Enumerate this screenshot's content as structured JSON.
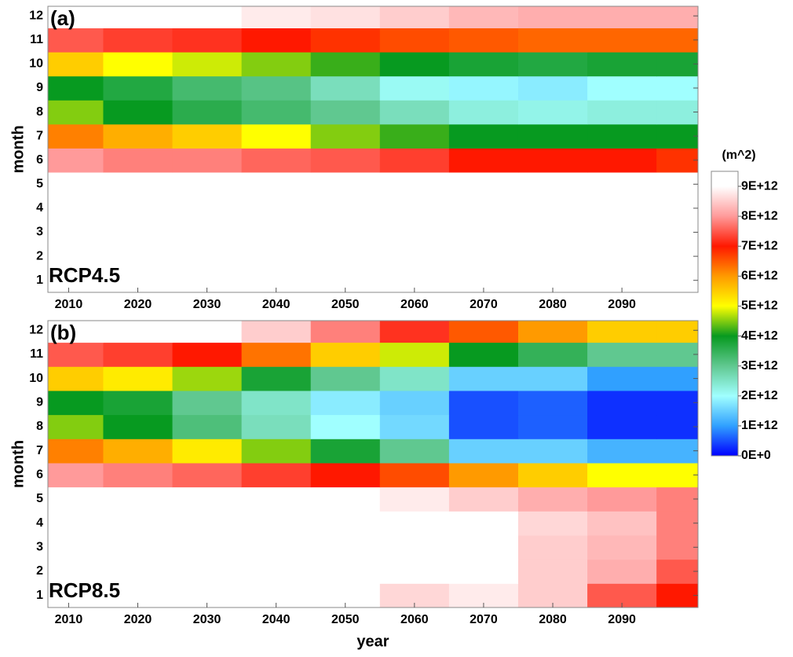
{
  "chart_data": [
    {
      "type": "heatmap",
      "label": "(a)",
      "scenario": "RCP4.5",
      "xlabel": "year",
      "ylabel": "month",
      "x": [
        2010,
        2020,
        2030,
        2040,
        2050,
        2060,
        2070,
        2080,
        2090,
        2100
      ],
      "y": [
        1,
        2,
        3,
        4,
        5,
        6,
        7,
        8,
        9,
        10,
        11,
        12
      ],
      "xlim": [
        2007,
        2101
      ],
      "ylim": [
        0.5,
        12.4
      ],
      "xticks": [
        2010,
        2020,
        2030,
        2040,
        2050,
        2060,
        2070,
        2080,
        2090
      ],
      "yticks": [
        1,
        2,
        3,
        4,
        5,
        6,
        7,
        8,
        9,
        10,
        11,
        12
      ],
      "z": [
        [
          9500000000000.0,
          9500000000000.0,
          9500000000000.0,
          9500000000000.0,
          9500000000000.0,
          9500000000000.0,
          9500000000000.0,
          9500000000000.0,
          9500000000000.0,
          9500000000000.0
        ],
        [
          9500000000000.0,
          9500000000000.0,
          9500000000000.0,
          9500000000000.0,
          9500000000000.0,
          9500000000000.0,
          9500000000000.0,
          9500000000000.0,
          9500000000000.0,
          9500000000000.0
        ],
        [
          9500000000000.0,
          9500000000000.0,
          9500000000000.0,
          9500000000000.0,
          9500000000000.0,
          9500000000000.0,
          9500000000000.0,
          9500000000000.0,
          9500000000000.0,
          9500000000000.0
        ],
        [
          9500000000000.0,
          9500000000000.0,
          9500000000000.0,
          9500000000000.0,
          9500000000000.0,
          9500000000000.0,
          9500000000000.0,
          9500000000000.0,
          9500000000000.0,
          9500000000000.0
        ],
        [
          9500000000000.0,
          9500000000000.0,
          9500000000000.0,
          9500000000000.0,
          9200000000000.0,
          9200000000000.0,
          9300000000000.0,
          9300000000000.0,
          9300000000000.0,
          9300000000000.0
        ],
        [
          8000000000000.0,
          7800000000000.0,
          7800000000000.0,
          7600000000000.0,
          7500000000000.0,
          7300000000000.0,
          7000000000000.0,
          7000000000000.0,
          7000000000000.0,
          6800000000000.0
        ],
        [
          6200000000000.0,
          5800000000000.0,
          5500000000000.0,
          5000000000000.0,
          4500000000000.0,
          4200000000000.0,
          4000000000000.0,
          4000000000000.0,
          4000000000000.0,
          4000000000000.0
        ],
        [
          4500000000000.0,
          4000000000000.0,
          3600000000000.0,
          3300000000000.0,
          3000000000000.0,
          2600000000000.0,
          2300000000000.0,
          2200000000000.0,
          2300000000000.0,
          2300000000000.0
        ],
        [
          4000000000000.0,
          3700000000000.0,
          3300000000000.0,
          3100000000000.0,
          2600000000000.0,
          2100000000000.0,
          1900000000000.0,
          1800000000000.0,
          2000000000000.0,
          2000000000000.0
        ],
        [
          5500000000000.0,
          5000000000000.0,
          4800000000000.0,
          4500000000000.0,
          4200000000000.0,
          4000000000000.0,
          3800000000000.0,
          3700000000000.0,
          3800000000000.0,
          3800000000000.0
        ],
        [
          7500000000000.0,
          7300000000000.0,
          7200000000000.0,
          7000000000000.0,
          6800000000000.0,
          6600000000000.0,
          6500000000000.0,
          6400000000000.0,
          6400000000000.0,
          6400000000000.0
        ],
        [
          9200000000000.0,
          9000000000000.0,
          9000000000000.0,
          8800000000000.0,
          8700000000000.0,
          8500000000000.0,
          8300000000000.0,
          8200000000000.0,
          8200000000000.0,
          8200000000000.0
        ]
      ]
    },
    {
      "type": "heatmap",
      "label": "(b)",
      "scenario": "RCP8.5",
      "xlabel": "year",
      "ylabel": "month",
      "x": [
        2010,
        2020,
        2030,
        2040,
        2050,
        2060,
        2070,
        2080,
        2090,
        2100
      ],
      "y": [
        1,
        2,
        3,
        4,
        5,
        6,
        7,
        8,
        9,
        10,
        11,
        12
      ],
      "xlim": [
        2007,
        2101
      ],
      "ylim": [
        0.5,
        12.4
      ],
      "xticks": [
        2010,
        2020,
        2030,
        2040,
        2050,
        2060,
        2070,
        2080,
        2090
      ],
      "yticks": [
        1,
        2,
        3,
        4,
        5,
        6,
        7,
        8,
        9,
        10,
        11,
        12
      ],
      "z": [
        [
          9500000000000.0,
          9500000000000.0,
          9500000000000.0,
          9500000000000.0,
          9200000000000.0,
          8600000000000.0,
          8800000000000.0,
          8500000000000.0,
          7500000000000.0,
          7000000000000.0
        ],
        [
          9500000000000.0,
          9500000000000.0,
          9500000000000.0,
          9500000000000.0,
          9300000000000.0,
          9000000000000.0,
          9000000000000.0,
          8500000000000.0,
          8200000000000.0,
          7500000000000.0
        ],
        [
          9500000000000.0,
          9500000000000.0,
          9500000000000.0,
          9500000000000.0,
          9400000000000.0,
          9300000000000.0,
          9300000000000.0,
          8500000000000.0,
          8300000000000.0,
          7800000000000.0
        ],
        [
          9500000000000.0,
          9500000000000.0,
          9500000000000.0,
          9500000000000.0,
          9400000000000.0,
          9300000000000.0,
          9300000000000.0,
          8600000000000.0,
          8400000000000.0,
          7800000000000.0
        ],
        [
          9500000000000.0,
          9500000000000.0,
          9500000000000.0,
          9400000000000.0,
          9000000000000.0,
          8800000000000.0,
          8500000000000.0,
          8200000000000.0,
          8000000000000.0,
          7800000000000.0
        ],
        [
          8000000000000.0,
          7800000000000.0,
          7600000000000.0,
          7300000000000.0,
          7000000000000.0,
          6600000000000.0,
          6000000000000.0,
          5500000000000.0,
          5000000000000.0,
          5000000000000.0
        ],
        [
          6200000000000.0,
          5800000000000.0,
          5200000000000.0,
          4500000000000.0,
          3800000000000.0,
          3000000000000.0,
          1500000000000.0,
          1500000000000.0,
          1200000000000.0,
          1200000000000.0
        ],
        [
          4500000000000.0,
          4000000000000.0,
          3200000000000.0,
          2600000000000.0,
          2000000000000.0,
          1600000000000.0,
          500000000000.0,
          600000000000.0,
          300000000000.0,
          300000000000.0
        ],
        [
          4000000000000.0,
          3800000000000.0,
          3000000000000.0,
          2500000000000.0,
          1800000000000.0,
          1500000000000.0,
          500000000000.0,
          600000000000.0,
          300000000000.0,
          300000000000.0
        ],
        [
          5500000000000.0,
          5200000000000.0,
          4600000000000.0,
          3800000000000.0,
          3000000000000.0,
          2500000000000.0,
          1500000000000.0,
          1500000000000.0,
          1000000000000.0,
          1000000000000.0
        ],
        [
          7500000000000.0,
          7300000000000.0,
          7000000000000.0,
          6300000000000.0,
          5500000000000.0,
          4800000000000.0,
          4000000000000.0,
          3500000000000.0,
          3000000000000.0,
          3000000000000.0
        ],
        [
          9200000000000.0,
          9200000000000.0,
          9000000000000.0,
          8500000000000.0,
          7800000000000.0,
          7200000000000.0,
          6500000000000.0,
          6000000000000.0,
          5500000000000.0,
          5500000000000.0
        ]
      ]
    }
  ],
  "colorbar": {
    "label": "(m^2)",
    "lim": [
      0,
      9500000000000.0
    ],
    "ticks": [
      {
        "value": 0,
        "label": "0E+0"
      },
      {
        "value": 1000000000000.0,
        "label": "1E+12"
      },
      {
        "value": 2000000000000.0,
        "label": "2E+12"
      },
      {
        "value": 3000000000000.0,
        "label": "3E+12"
      },
      {
        "value": 4000000000000.0,
        "label": "4E+12"
      },
      {
        "value": 5000000000000.0,
        "label": "5E+12"
      },
      {
        "value": 6000000000000.0,
        "label": "6E+12"
      },
      {
        "value": 7000000000000.0,
        "label": "7E+12"
      },
      {
        "value": 8000000000000.0,
        "label": "8E+12"
      },
      {
        "value": 9000000000000.0,
        "label": "9E+12"
      }
    ],
    "colors": [
      "#0000ff",
      "#30a0ff",
      "#a0ffff",
      "#60c890",
      "#079a20",
      "#ffff00",
      "#ff9a00",
      "#ff1800",
      "#ff9a9a",
      "#ffffff"
    ]
  }
}
